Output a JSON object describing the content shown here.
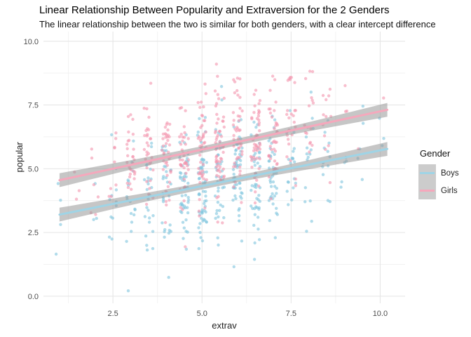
{
  "chart_data": {
    "type": "scatter",
    "title": "Linear Relationship Between Popularity and Extraversion for the 2 Genders",
    "subtitle": "The linear relationship between the two is similar for both genders, with a clear intercept difference",
    "xlabel": "extrav",
    "ylabel": "popular",
    "xlim": [
      0.55,
      10.7
    ],
    "ylim": [
      -0.28,
      10.38
    ],
    "x_major_ticks": [
      2.5,
      5.0,
      7.5,
      10.0
    ],
    "x_tick_labels": [
      "2.5",
      "5.0",
      "7.5",
      "10.0"
    ],
    "x_minor_ticks": [
      1.25,
      3.75,
      6.25,
      8.75
    ],
    "y_major_ticks": [
      0,
      2.5,
      5.0,
      7.5,
      10.0
    ],
    "y_tick_labels": [
      "0.0",
      "2.5",
      "5.0",
      "7.5",
      "10.0"
    ],
    "y_minor_ticks": [
      1.25,
      3.75,
      6.25,
      8.75
    ],
    "grid": "major+minor",
    "legend": {
      "title": "Gender",
      "position": "right",
      "key_fill": "#CCCCCC"
    },
    "series": [
      {
        "name": "Boys",
        "point_color": "#7EC5DE",
        "point_opacity": 0.6,
        "line_color": "#9FD4E6",
        "regression": {
          "intercept": 2.92,
          "slope": 0.28,
          "x_start": 1.0,
          "x_end": 10.2
        },
        "scatter_sim": {
          "n": 430,
          "seed": 1337,
          "x_mean": 5.5,
          "x_sd": 1.65,
          "resid_sd": 1.15,
          "x_clip": [
            0.9,
            10.1
          ],
          "y_clip": [
            0.05,
            9.6
          ]
        }
      },
      {
        "name": "Girls",
        "point_color": "#F394AE",
        "point_opacity": 0.6,
        "line_color": "#F5A8BC",
        "regression": {
          "intercept": 4.25,
          "slope": 0.3,
          "x_start": 1.0,
          "x_end": 10.2
        },
        "scatter_sim": {
          "n": 450,
          "seed": 42,
          "x_mean": 5.4,
          "x_sd": 1.6,
          "resid_sd": 1.12,
          "x_clip": [
            0.9,
            10.1
          ],
          "y_clip": [
            0.05,
            9.65
          ]
        }
      }
    ],
    "band": {
      "color": "#979797",
      "opacity": 0.55,
      "halfwidth_base": 0.13,
      "halfwidth_slope": 0.052,
      "x_center": 5.6
    }
  },
  "colors": {
    "background": "#FFFFFF",
    "grid_major": "#E4E4E4",
    "grid_minor": "#F2F2F2",
    "tick_label": "#4D4D4D",
    "axis_title": "#1F1F1F",
    "title": "#000000",
    "subtitle": "#111111",
    "legend_text": "#1F1F1F"
  }
}
